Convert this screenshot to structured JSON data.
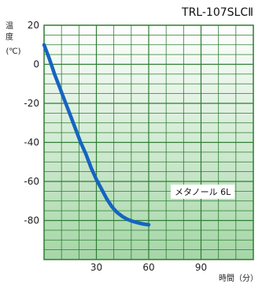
{
  "chart_data": {
    "type": "line",
    "title": "TRL-107SLCⅡ",
    "ylabel_line1": "温",
    "ylabel_line2": "度",
    "ylabel_unit": "(℃)",
    "xlabel": "時間（分）",
    "xlim": [
      0,
      120
    ],
    "ylim": [
      -100,
      20
    ],
    "x_ticks": [
      30,
      60,
      90
    ],
    "y_ticks": [
      20,
      0,
      -20,
      -40,
      -60,
      -80
    ],
    "grid": true,
    "colors": {
      "line": "#1565c0",
      "grid": "#2e7d32",
      "bg_top": "#ffffff",
      "bg_bottom": "#a5d6a7"
    },
    "series": [
      {
        "name": "メタノール 6L",
        "x": [
          0,
          3,
          6,
          9,
          12,
          15,
          18,
          21,
          24,
          27,
          30,
          33,
          36,
          39,
          42,
          45,
          48,
          51,
          54,
          57,
          60
        ],
        "y": [
          10,
          3,
          -5,
          -12,
          -19,
          -26,
          -33,
          -40,
          -46,
          -53,
          -59,
          -64,
          -69,
          -73,
          -76,
          -78,
          -79.5,
          -80.5,
          -81.2,
          -81.8,
          -82.2
        ]
      }
    ]
  }
}
